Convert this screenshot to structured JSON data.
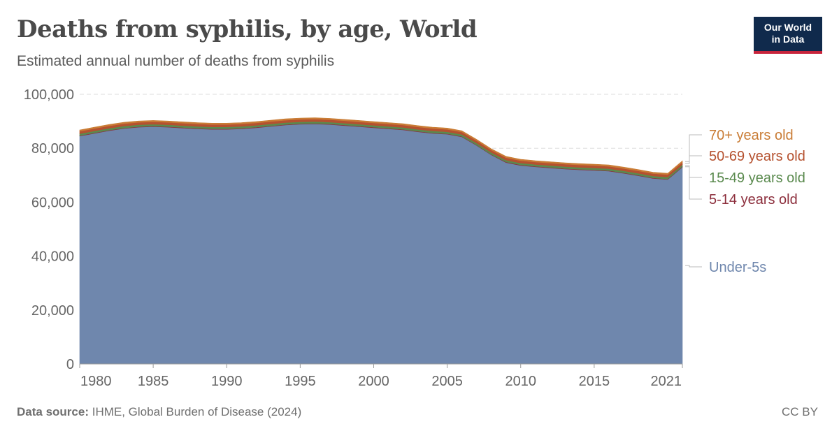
{
  "header": {
    "title": "Deaths from syphilis, by age, World",
    "subtitle": "Estimated annual number of deaths from syphilis"
  },
  "logo": {
    "line1": "Our World",
    "line2": "in Data"
  },
  "footer": {
    "source_label": "Data source:",
    "source_text": "IHME, Global Burden of Disease (2024)",
    "license": "CC BY"
  },
  "chart_data": {
    "type": "area",
    "stacked": true,
    "title": "Deaths from syphilis, by age, World",
    "subtitle": "Estimated annual number of deaths from syphilis",
    "xlim": [
      1980,
      2021
    ],
    "ylim": [
      0,
      100000
    ],
    "x_ticks": [
      "1980",
      "1985",
      "1990",
      "1995",
      "2000",
      "2005",
      "2010",
      "2015",
      "2021"
    ],
    "y_ticks": [
      "0",
      "20,000",
      "40,000",
      "60,000",
      "80,000",
      "100,000"
    ],
    "grid": "horizontal dashed",
    "legend": "right, labels at series ends",
    "x": [
      1980,
      1981,
      1982,
      1983,
      1984,
      1985,
      1986,
      1987,
      1988,
      1989,
      1990,
      1991,
      1992,
      1993,
      1994,
      1995,
      1996,
      1997,
      1998,
      1999,
      2000,
      2001,
      2002,
      2003,
      2004,
      2005,
      2006,
      2007,
      2008,
      2009,
      2010,
      2011,
      2012,
      2013,
      2014,
      2015,
      2016,
      2017,
      2018,
      2019,
      2020,
      2021
    ],
    "series": [
      {
        "name": "Under-5s",
        "color": "#6f87ad",
        "values": [
          84500,
          85500,
          86500,
          87300,
          87800,
          88000,
          87800,
          87500,
          87200,
          87000,
          87000,
          87200,
          87600,
          88100,
          88600,
          88900,
          89000,
          88800,
          88400,
          88000,
          87600,
          87200,
          86800,
          86100,
          85500,
          85200,
          84200,
          81000,
          77500,
          74700,
          73600,
          73100,
          72700,
          72300,
          72000,
          71800,
          71500,
          70700,
          69800,
          68800,
          68400,
          73000
        ]
      },
      {
        "name": "5-14 years old",
        "color": "#8c2e3c",
        "values": [
          200,
          200,
          200,
          200,
          200,
          200,
          200,
          200,
          200,
          200,
          200,
          200,
          200,
          200,
          200,
          200,
          200,
          200,
          200,
          200,
          200,
          200,
          200,
          200,
          200,
          200,
          200,
          200,
          200,
          200,
          200,
          200,
          200,
          200,
          200,
          200,
          200,
          200,
          200,
          200,
          200,
          200
        ]
      },
      {
        "name": "15-49 years old",
        "color": "#5a8a4e",
        "values": [
          700,
          700,
          700,
          700,
          700,
          700,
          700,
          700,
          700,
          700,
          700,
          700,
          700,
          700,
          700,
          700,
          700,
          700,
          700,
          700,
          700,
          700,
          700,
          700,
          700,
          700,
          700,
          700,
          700,
          700,
          700,
          700,
          700,
          700,
          700,
          700,
          700,
          700,
          700,
          700,
          700,
          700
        ]
      },
      {
        "name": "50-69 years old",
        "color": "#b5512f",
        "values": [
          900,
          900,
          900,
          900,
          900,
          900,
          900,
          900,
          900,
          900,
          900,
          900,
          900,
          900,
          900,
          900,
          900,
          900,
          900,
          900,
          900,
          900,
          900,
          900,
          900,
          900,
          900,
          900,
          900,
          900,
          900,
          900,
          900,
          900,
          900,
          900,
          900,
          900,
          900,
          900,
          900,
          900
        ]
      },
      {
        "name": "70+ years old",
        "color": "#c97c35",
        "values": [
          500,
          500,
          500,
          500,
          500,
          500,
          500,
          500,
          500,
          500,
          500,
          500,
          500,
          500,
          500,
          500,
          500,
          500,
          500,
          500,
          500,
          500,
          500,
          500,
          500,
          500,
          500,
          500,
          500,
          500,
          500,
          500,
          500,
          500,
          500,
          500,
          500,
          500,
          500,
          500,
          500,
          500
        ]
      }
    ]
  }
}
